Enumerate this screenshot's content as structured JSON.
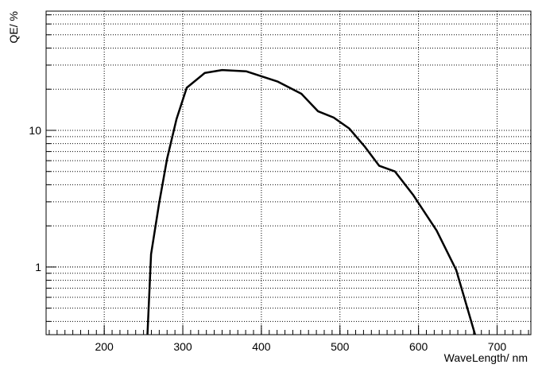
{
  "chart_data": {
    "type": "line",
    "xlabel": "WaveLength/ nm",
    "ylabel": "QE/ %",
    "x": [
      255,
      259.6,
      270,
      280,
      292,
      305,
      328,
      350,
      381,
      421,
      451,
      472,
      492,
      512,
      532,
      550,
      570,
      593,
      623,
      648,
      672
    ],
    "series": [
      {
        "name": "QE",
        "color": "#000000",
        "values": [
          0.32,
          1.24,
          2.96,
          6.2,
          12.1,
          20.5,
          26.3,
          27.6,
          27,
          22.7,
          18.5,
          13.8,
          12.4,
          10.3,
          7.55,
          5.5,
          5.0,
          3.38,
          1.85,
          0.95,
          0.32
        ]
      }
    ],
    "xlim": [
      126,
      743
    ],
    "xticks": [
      200,
      300,
      400,
      500,
      600,
      700
    ],
    "ylim": [
      0.32,
      74.5
    ],
    "yticks": [
      1,
      10
    ],
    "ylog": true,
    "grid": true
  }
}
